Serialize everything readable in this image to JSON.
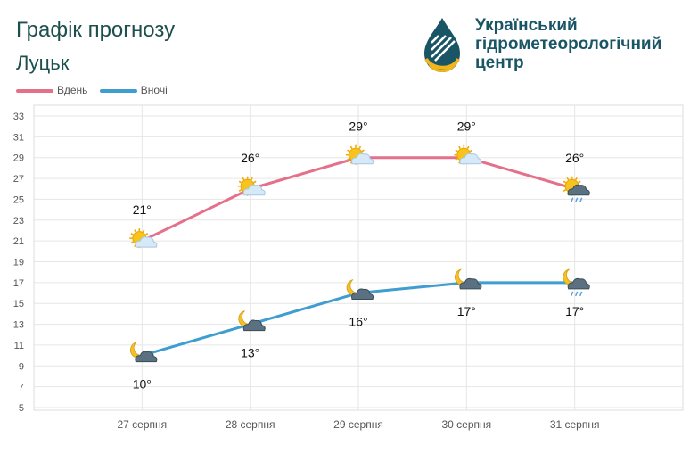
{
  "header": {
    "title": "Графік прогнозу",
    "city": "Луцьк",
    "org_name_line1": "Український",
    "org_name_line2": "гідрометеорологічний",
    "org_name_line3": "центр"
  },
  "colors": {
    "day": "#e4708a",
    "night": "#3f9dd0",
    "grid": "#e6e6e6",
    "axis_text": "#555555",
    "logo_blue": "#1a5566",
    "logo_yellow": "#f2b61a"
  },
  "chart_data": {
    "type": "line",
    "categories": [
      "27 серпня",
      "28 серпня",
      "29 серпня",
      "30 серпня",
      "31 серпня"
    ],
    "series": [
      {
        "name": "Вдень",
        "values": [
          21,
          26,
          29,
          29,
          26
        ],
        "labels": [
          "21°",
          "26°",
          "29°",
          "29°",
          "26°"
        ],
        "icons": [
          "sun-cloud-icon",
          "sun-cloud-icon",
          "sun-cloud-icon",
          "sun-cloud-icon",
          "sun-rain-cloud-icon"
        ]
      },
      {
        "name": "Вночі",
        "values": [
          10,
          13,
          16,
          17,
          17
        ],
        "labels": [
          "10°",
          "13°",
          "16°",
          "17°",
          "17°"
        ],
        "icons": [
          "moon-cloud-icon",
          "moon-cloud-icon",
          "moon-cloud-icon",
          "moon-cloud-icon",
          "moon-rain-cloud-icon"
        ]
      }
    ],
    "ylim": [
      5,
      33
    ],
    "yticks": [
      5,
      7,
      9,
      11,
      13,
      15,
      17,
      19,
      21,
      23,
      25,
      27,
      29,
      31,
      33
    ],
    "legend": "top-left"
  }
}
